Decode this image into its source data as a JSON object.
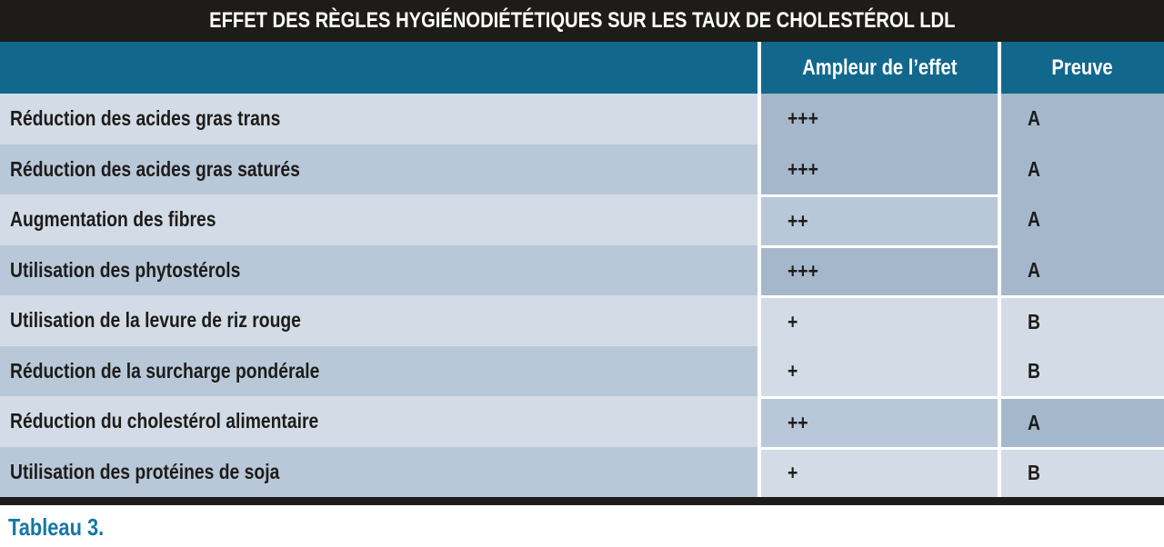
{
  "title": "EFFET DES RÈGLES HYGIÉNODIÉTÉTIQUES SUR LES TAUX DE CHOLESTÉROL LDL",
  "caption": "Tableau 3.",
  "columns": {
    "effect": "Ampleur de l’effet",
    "proof": "Preuve"
  },
  "rows": [
    {
      "label": "Réduction des acides gras trans",
      "effect": "+++",
      "proof": "A"
    },
    {
      "label": "Réduction des acides gras saturés",
      "effect": "+++",
      "proof": "A"
    },
    {
      "label": "Augmentation des fibres",
      "effect": "++",
      "proof": "A"
    },
    {
      "label": "Utilisation des phytostérols",
      "effect": "+++",
      "proof": "A"
    },
    {
      "label": "Utilisation de la levure de riz rouge",
      "effect": "+",
      "proof": "B"
    },
    {
      "label": "Réduction de la surcharge pondérale",
      "effect": "+",
      "proof": "B"
    },
    {
      "label": "Réduction du cholestérol alimentaire",
      "effect": "++",
      "proof": "A"
    },
    {
      "label": "Utilisation des protéines de soja",
      "effect": "+",
      "proof": "B"
    }
  ],
  "value_shades": {
    "+++": "dark",
    "++": "medium",
    "+": "light",
    "A": "dark",
    "B": "light"
  },
  "colors": {
    "title_bar": "#1d1c1a",
    "header": "#11688c",
    "header_text": "#ffffff",
    "row_light": "#d3dce6",
    "row_medium": "#b9c8d8",
    "row_dark": "#a5b8cb",
    "separator": "#ffffff",
    "text": "#1d1c1a",
    "caption": "#1478a2"
  }
}
